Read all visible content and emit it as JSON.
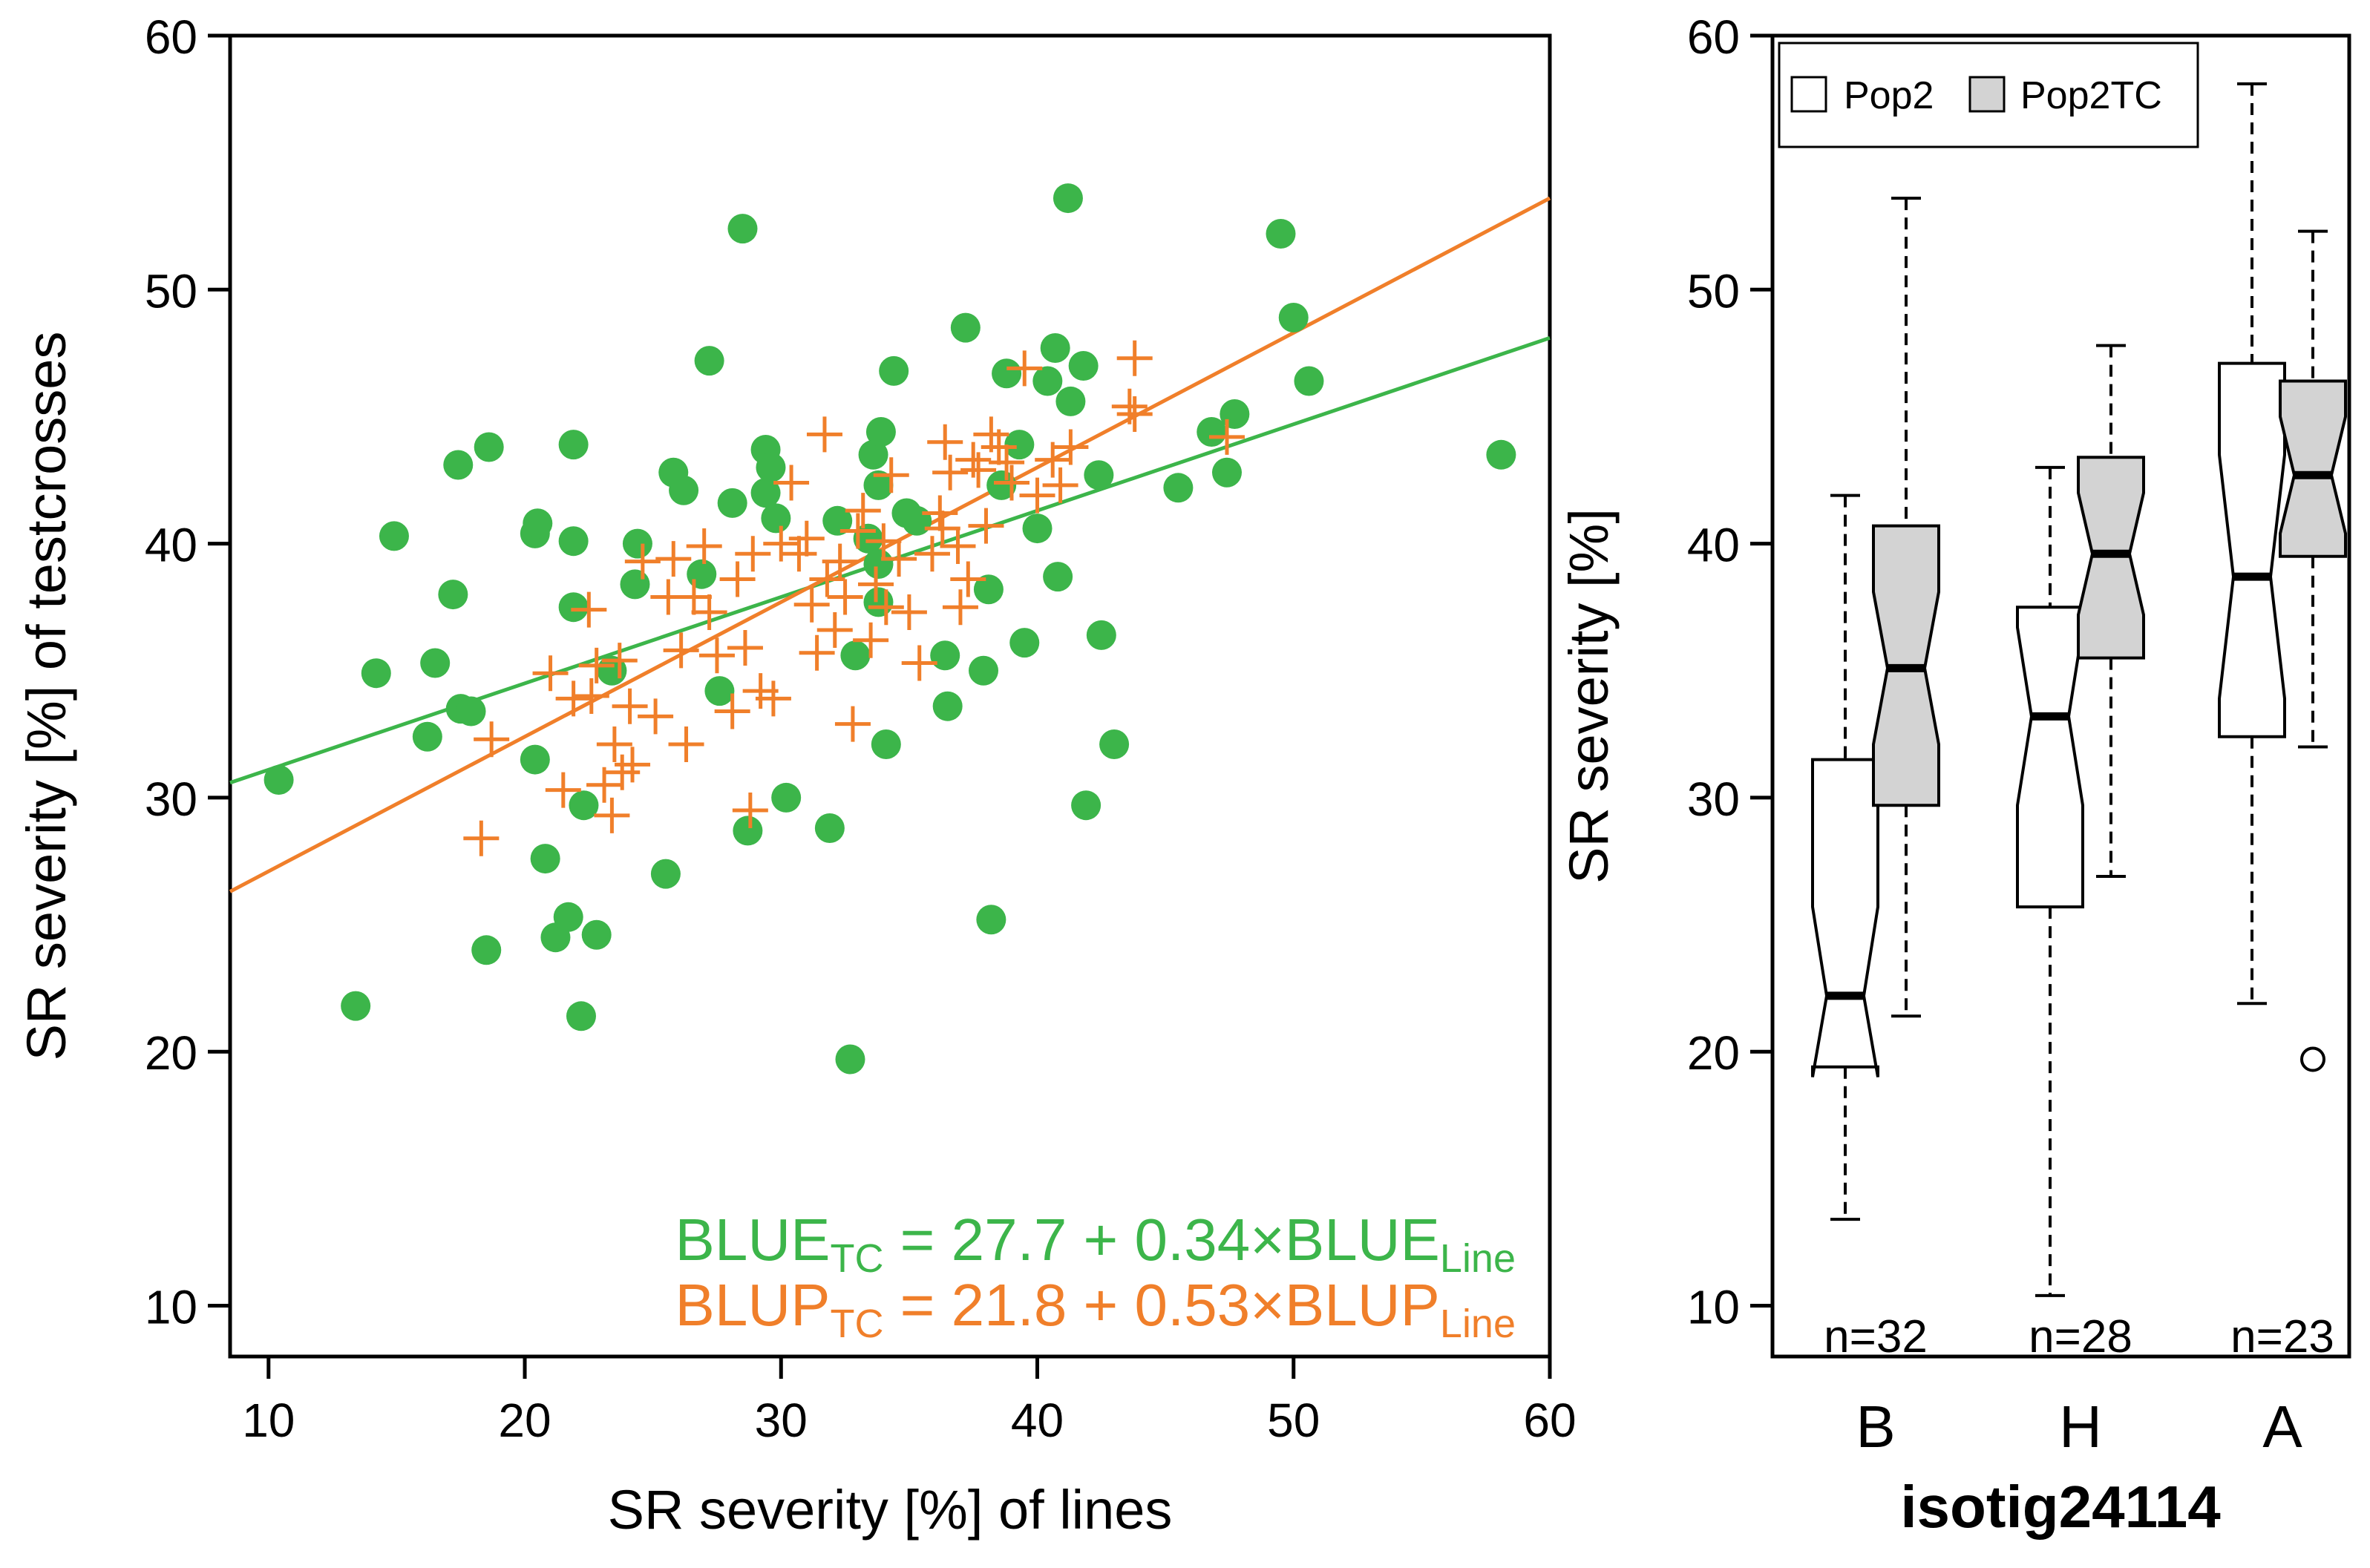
{
  "colors": {
    "blue_series": "#3cb54a",
    "blup_series": "#f07f2a",
    "axis": "#000000",
    "box_pop2": "#ffffff",
    "box_pop2tc": "#d3d3d3"
  },
  "chart_data": [
    {
      "type": "scatter",
      "xlabel": "SR severity [%] of lines",
      "ylabel": "SR severity [%] of testcrosses",
      "xlim": [
        8.5,
        60
      ],
      "ylim": [
        8,
        60
      ],
      "xticks": [
        "10",
        "20",
        "30",
        "40",
        "50",
        "60"
      ],
      "yticks": [
        "10",
        "20",
        "30",
        "40",
        "50",
        "60"
      ],
      "series": [
        {
          "marker": "filled-circle",
          "color": "#3cb54a",
          "points": [
            [
              10.4,
              30.7
            ],
            [
              13.4,
              21.8
            ],
            [
              14.2,
              34.9
            ],
            [
              14.9,
              40.3
            ],
            [
              16.2,
              32.4
            ],
            [
              16.5,
              35.3
            ],
            [
              17.2,
              38.0
            ],
            [
              17.4,
              43.1
            ],
            [
              17.5,
              33.5
            ],
            [
              17.9,
              33.4
            ],
            [
              18.5,
              24.0
            ],
            [
              18.6,
              43.8
            ],
            [
              20.4,
              31.5
            ],
            [
              20.4,
              40.4
            ],
            [
              20.5,
              40.8
            ],
            [
              20.8,
              27.6
            ],
            [
              21.2,
              24.5
            ],
            [
              21.7,
              25.3
            ],
            [
              21.9,
              43.9
            ],
            [
              21.9,
              37.5
            ],
            [
              21.9,
              40.1
            ],
            [
              22.2,
              21.4
            ],
            [
              22.3,
              29.7
            ],
            [
              22.8,
              24.6
            ],
            [
              23.4,
              35.0
            ],
            [
              24.3,
              38.4
            ],
            [
              24.4,
              40.0
            ],
            [
              25.5,
              27.0
            ],
            [
              25.8,
              42.8
            ],
            [
              26.2,
              42.1
            ],
            [
              26.9,
              38.8
            ],
            [
              27.2,
              47.2
            ],
            [
              27.6,
              34.2
            ],
            [
              28.1,
              41.6
            ],
            [
              28.5,
              52.4
            ],
            [
              28.7,
              28.7
            ],
            [
              29.4,
              43.7
            ],
            [
              29.4,
              42.0
            ],
            [
              29.6,
              43.0
            ],
            [
              29.8,
              41.0
            ],
            [
              30.2,
              30.0
            ],
            [
              31.9,
              28.8
            ],
            [
              32.2,
              40.9
            ],
            [
              32.7,
              19.7
            ],
            [
              32.9,
              35.6
            ],
            [
              33.4,
              40.2
            ],
            [
              33.6,
              43.5
            ],
            [
              33.8,
              42.3
            ],
            [
              33.8,
              37.7
            ],
            [
              33.8,
              39.2
            ],
            [
              33.9,
              44.4
            ],
            [
              34.1,
              32.1
            ],
            [
              34.4,
              46.8
            ],
            [
              34.9,
              41.2
            ],
            [
              35.3,
              40.9
            ],
            [
              36.4,
              35.6
            ],
            [
              36.5,
              33.6
            ],
            [
              37.2,
              48.5
            ],
            [
              37.9,
              35.0
            ],
            [
              38.1,
              38.2
            ],
            [
              38.2,
              25.2
            ],
            [
              38.6,
              42.3
            ],
            [
              38.8,
              46.7
            ],
            [
              39.3,
              43.9
            ],
            [
              39.5,
              36.1
            ],
            [
              40.0,
              40.6
            ],
            [
              40.4,
              46.4
            ],
            [
              40.7,
              47.7
            ],
            [
              40.8,
              38.7
            ],
            [
              41.2,
              53.6
            ],
            [
              41.3,
              45.6
            ],
            [
              41.8,
              47.0
            ],
            [
              41.9,
              29.7
            ],
            [
              42.4,
              42.7
            ],
            [
              42.5,
              36.4
            ],
            [
              43.0,
              32.1
            ],
            [
              45.5,
              42.2
            ],
            [
              46.8,
              44.4
            ],
            [
              47.4,
              42.8
            ],
            [
              47.7,
              45.1
            ],
            [
              49.5,
              52.2
            ],
            [
              50.0,
              48.9
            ],
            [
              50.6,
              46.4
            ],
            [
              58.1,
              43.5
            ]
          ]
        },
        {
          "marker": "plus",
          "color": "#f07f2a",
          "points": [
            [
              18.3,
              28.4
            ],
            [
              18.7,
              32.3
            ],
            [
              21.0,
              34.9
            ],
            [
              21.5,
              30.3
            ],
            [
              21.9,
              33.9
            ],
            [
              22.5,
              37.4
            ],
            [
              22.6,
              34.0
            ],
            [
              22.8,
              35.2
            ],
            [
              23.1,
              30.5
            ],
            [
              23.4,
              29.3
            ],
            [
              23.5,
              32.1
            ],
            [
              23.7,
              35.4
            ],
            [
              23.8,
              31.0
            ],
            [
              24.1,
              33.6
            ],
            [
              24.2,
              31.3
            ],
            [
              24.6,
              39.3
            ],
            [
              25.1,
              33.2
            ],
            [
              25.6,
              37.9
            ],
            [
              25.8,
              39.4
            ],
            [
              26.1,
              35.8
            ],
            [
              26.3,
              32.1
            ],
            [
              26.6,
              37.9
            ],
            [
              27.0,
              39.9
            ],
            [
              27.2,
              37.3
            ],
            [
              27.5,
              35.6
            ],
            [
              28.1,
              33.4
            ],
            [
              28.3,
              38.6
            ],
            [
              28.6,
              35.9
            ],
            [
              28.8,
              29.5
            ],
            [
              28.9,
              39.6
            ],
            [
              29.2,
              34.2
            ],
            [
              29.7,
              33.9
            ],
            [
              30.0,
              40.0
            ],
            [
              30.4,
              42.4
            ],
            [
              30.7,
              39.6
            ],
            [
              31.0,
              40.2
            ],
            [
              31.2,
              37.6
            ],
            [
              31.4,
              35.7
            ],
            [
              31.7,
              44.3
            ],
            [
              31.8,
              38.6
            ],
            [
              32.1,
              36.6
            ],
            [
              32.3,
              39.3
            ],
            [
              32.5,
              37.9
            ],
            [
              32.8,
              32.9
            ],
            [
              33.0,
              40.5
            ],
            [
              33.2,
              41.3
            ],
            [
              33.5,
              36.2
            ],
            [
              33.7,
              38.4
            ],
            [
              34.0,
              40.1
            ],
            [
              34.1,
              37.5
            ],
            [
              34.3,
              42.7
            ],
            [
              34.6,
              39.4
            ],
            [
              35.0,
              37.3
            ],
            [
              35.4,
              35.3
            ],
            [
              35.9,
              39.6
            ],
            [
              36.2,
              41.2
            ],
            [
              36.3,
              40.6
            ],
            [
              36.4,
              44.0
            ],
            [
              36.6,
              42.8
            ],
            [
              36.9,
              39.9
            ],
            [
              37.0,
              37.5
            ],
            [
              37.3,
              38.6
            ],
            [
              37.5,
              43.3
            ],
            [
              37.7,
              42.9
            ],
            [
              38.0,
              40.7
            ],
            [
              38.2,
              44.3
            ],
            [
              38.5,
              43.8
            ],
            [
              38.8,
              43.2
            ],
            [
              39.0,
              42.4
            ],
            [
              39.5,
              46.9
            ],
            [
              40.0,
              41.9
            ],
            [
              40.6,
              43.3
            ],
            [
              40.9,
              42.3
            ],
            [
              41.3,
              43.8
            ],
            [
              43.6,
              45.4
            ],
            [
              43.8,
              47.3
            ],
            [
              43.8,
              45.1
            ],
            [
              47.4,
              44.2
            ]
          ]
        }
      ],
      "fit_lines": [
        {
          "color": "#3cb54a",
          "intercept": 27.7,
          "slope": 0.34
        },
        {
          "color": "#f07f2a",
          "intercept": 21.8,
          "slope": 0.53
        }
      ],
      "annotations": [
        {
          "main": "BLUE",
          "sub1": "TC",
          "mid": " = 27.7 + 0.34×BLUE",
          "sub2": "Line",
          "color": "#3cb54a"
        },
        {
          "main": "BLUP",
          "sub1": "TC",
          "mid": " = 21.8 + 0.53×BLUP",
          "sub2": "Line",
          "color": "#f07f2a"
        }
      ]
    },
    {
      "type": "boxplot",
      "notched": true,
      "xlabel": "isotig24114",
      "ylabel": "SR severity [%]",
      "ylim": [
        8,
        60
      ],
      "yticks": [
        "10",
        "20",
        "30",
        "40",
        "50",
        "60"
      ],
      "categories": [
        "B",
        "H",
        "A"
      ],
      "counts": [
        "n=32",
        "n=28",
        "n=23"
      ],
      "legend": {
        "position": "top-left",
        "entries": [
          "Pop2",
          "Pop2TC"
        ]
      },
      "series": [
        {
          "name": "Pop2",
          "color": "#ffffff",
          "boxes": [
            {
              "min": 13.4,
              "q1": 19.4,
              "median": 22.2,
              "q3": 31.5,
              "max": 41.9,
              "notch_lo": 19.0,
              "notch_hi": 25.7
            },
            {
              "min": 10.4,
              "q1": 25.7,
              "median": 33.2,
              "q3": 37.5,
              "max": 43.0,
              "notch_lo": 29.7,
              "notch_hi": 36.7
            },
            {
              "min": 21.9,
              "q1": 32.4,
              "median": 38.7,
              "q3": 47.1,
              "max": 58.1,
              "notch_lo": 33.9,
              "notch_hi": 43.5
            }
          ]
        },
        {
          "name": "Pop2TC",
          "color": "#d3d3d3",
          "boxes": [
            {
              "min": 21.4,
              "q1": 29.7,
              "median": 35.1,
              "q3": 40.7,
              "max": 53.6,
              "notch_lo": 32.1,
              "notch_hi": 38.1
            },
            {
              "min": 26.9,
              "q1": 35.5,
              "median": 39.6,
              "q3": 43.4,
              "max": 47.8,
              "notch_lo": 37.2,
              "notch_hi": 42.0
            },
            {
              "min": 32.0,
              "q1": 39.5,
              "median": 42.7,
              "q3": 46.4,
              "max": 52.3,
              "notch_lo": 40.4,
              "notch_hi": 45.0
            }
          ],
          "outliers": [
            {
              "category_index": 2,
              "value": 19.7
            }
          ]
        }
      ]
    }
  ]
}
